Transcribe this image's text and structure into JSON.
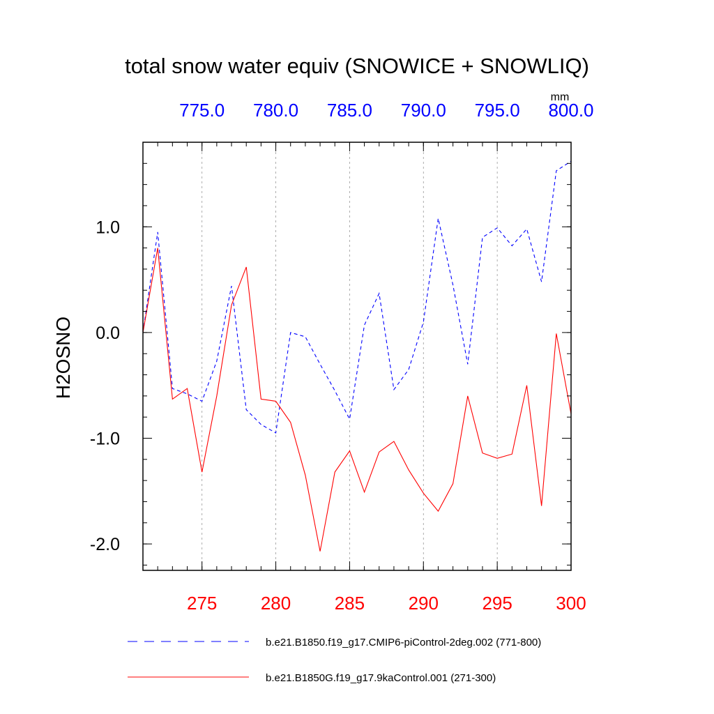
{
  "chart_data": {
    "type": "line",
    "title": "total snow water equiv (SNOWICE + SNOWLIQ)",
    "ylabel": "H2OSNO",
    "units": "mm",
    "ylim": [
      -2.25,
      1.8
    ],
    "y_ticks": [
      1.0,
      0.0,
      -1.0,
      -2.0
    ],
    "y_tick_labels": [
      "1.0",
      "0.0",
      "-1.0",
      "-2.0"
    ],
    "grid": "vertical dotted at major x ticks",
    "legend_position": "bottom",
    "bottom_axis": {
      "range": [
        271,
        300
      ],
      "ticks": [
        275,
        280,
        285,
        290,
        295,
        300
      ],
      "tick_labels": [
        "275",
        "280",
        "285",
        "290",
        "295",
        "300"
      ],
      "color": "#ff0000"
    },
    "top_axis": {
      "range": [
        771,
        800
      ],
      "ticks": [
        775,
        780,
        785,
        790,
        795,
        800
      ],
      "tick_labels": [
        "775.0",
        "780.0",
        "785.0",
        "790.0",
        "795.0",
        "800.0"
      ],
      "color": "#0000ff"
    },
    "series": [
      {
        "name": "b.e21.B1850.f19_g17.CMIP6-piControl-2deg.002 (771-800)",
        "axis": "top",
        "color": "#0000ff",
        "style": "dashed",
        "x": [
          771,
          772,
          773,
          774,
          775,
          776,
          777,
          778,
          779,
          780,
          781,
          782,
          783,
          784,
          785,
          786,
          787,
          788,
          789,
          790,
          791,
          792,
          793,
          794,
          795,
          796,
          797,
          798,
          799,
          800
        ],
        "values": [
          0.0,
          0.95,
          -0.53,
          -0.58,
          -0.65,
          -0.27,
          0.44,
          -0.73,
          -0.87,
          -0.95,
          0.0,
          -0.04,
          -0.3,
          -0.55,
          -0.82,
          0.07,
          0.37,
          -0.54,
          -0.35,
          0.1,
          1.08,
          0.45,
          -0.3,
          0.9,
          0.99,
          0.82,
          0.98,
          0.48,
          1.53,
          1.62
        ]
      },
      {
        "name": "b.e21.B1850G.f19_g17.9kaControl.001 (271-300)",
        "axis": "bottom",
        "color": "#ff0000",
        "style": "solid",
        "x": [
          271,
          272,
          273,
          274,
          275,
          276,
          277,
          278,
          279,
          280,
          281,
          282,
          283,
          284,
          285,
          286,
          287,
          288,
          289,
          290,
          291,
          292,
          293,
          294,
          295,
          296,
          297,
          298,
          299,
          300
        ],
        "values": [
          0.0,
          0.8,
          -0.63,
          -0.53,
          -1.32,
          -0.6,
          0.26,
          0.62,
          -0.63,
          -0.65,
          -0.85,
          -1.35,
          -2.07,
          -1.32,
          -1.12,
          -1.51,
          -1.13,
          -1.03,
          -1.3,
          -1.52,
          -1.69,
          -1.43,
          -0.6,
          -1.14,
          -1.19,
          -1.15,
          -0.5,
          -1.64,
          -0.01,
          -0.77
        ]
      }
    ]
  }
}
